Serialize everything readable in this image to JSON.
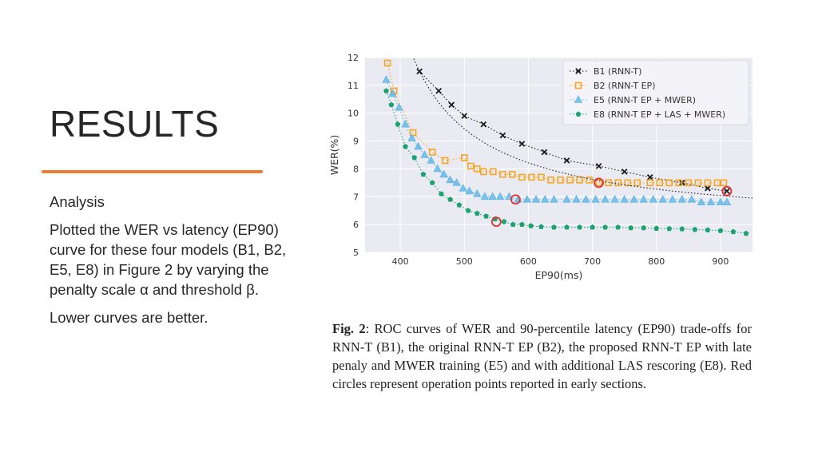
{
  "slide": {
    "title": "RESULTS",
    "accent_color": "#ed7d31",
    "analysis_label": "Analysis",
    "paragraph": "Plotted the WER vs latency (EP90) curve for these four models (B1, B2, E5, E8) in Figure 2 by varying the penalty scale α and threshold β.",
    "note": "Lower curves are better."
  },
  "caption": {
    "label": "Fig. 2",
    "text": ": ROC curves of WER and 90-percentile latency (EP90) trade-offs for RNN-T (B1), the original RNN-T EP (B2), the proposed RNN-T EP with late penaly and MWER training (E5) and with additional LAS rescoring (E8). Red circles represent operation points reported in early sections."
  },
  "chart_data": {
    "type": "line",
    "xlabel": "EP90(ms)",
    "ylabel": "WER(%)",
    "xlim": [
      345,
      950
    ],
    "ylim": [
      5,
      12
    ],
    "xticks": [
      400,
      500,
      600,
      700,
      800,
      900
    ],
    "yticks": [
      5,
      6,
      7,
      8,
      9,
      10,
      11,
      12
    ],
    "grid": true,
    "legend_position": "top-right",
    "series": [
      {
        "name": "B1 (RNN-T)",
        "color": "#1a1a1a",
        "marker": "x",
        "x": [
          430,
          460,
          480,
          500,
          530,
          560,
          590,
          625,
          660,
          710,
          750,
          790,
          840,
          880,
          910
        ],
        "y": [
          11.5,
          10.8,
          10.3,
          9.9,
          9.6,
          9.2,
          8.9,
          8.6,
          8.3,
          8.1,
          7.9,
          7.7,
          7.5,
          7.3,
          7.2
        ]
      },
      {
        "name": "B2 (RNN-T EP)",
        "color": "#f5a623",
        "marker": "square",
        "x": [
          380,
          390,
          420,
          450,
          470,
          500,
          510,
          520,
          530,
          545,
          560,
          575,
          590,
          605,
          620,
          635,
          650,
          665,
          680,
          695,
          710,
          725,
          740,
          755,
          770,
          790,
          805,
          820,
          835,
          850,
          865,
          880,
          895,
          905
        ],
        "y": [
          11.8,
          10.8,
          9.3,
          8.6,
          8.3,
          8.4,
          8.1,
          8.0,
          7.9,
          7.9,
          7.8,
          7.8,
          7.7,
          7.7,
          7.7,
          7.6,
          7.6,
          7.6,
          7.6,
          7.6,
          7.5,
          7.5,
          7.5,
          7.5,
          7.5,
          7.5,
          7.5,
          7.5,
          7.5,
          7.5,
          7.5,
          7.5,
          7.5,
          7.5
        ]
      },
      {
        "name": "E5 (RNN-T EP + MWER)",
        "color": "#5ab4e6",
        "marker": "triangle",
        "x": [
          378,
          388,
          398,
          408,
          418,
          428,
          438,
          448,
          458,
          468,
          478,
          488,
          498,
          508,
          520,
          532,
          544,
          556,
          570,
          584,
          598,
          612,
          626,
          640,
          660,
          675,
          690,
          705,
          720,
          735,
          750,
          765,
          780,
          795,
          810,
          825,
          840,
          855,
          870,
          885,
          900,
          910
        ],
        "y": [
          11.2,
          10.7,
          10.2,
          9.6,
          9.1,
          8.8,
          8.5,
          8.3,
          8.0,
          7.8,
          7.6,
          7.5,
          7.3,
          7.2,
          7.1,
          7.0,
          7.0,
          7.0,
          7.0,
          6.9,
          6.9,
          6.9,
          6.9,
          6.9,
          6.9,
          6.9,
          6.9,
          6.9,
          6.9,
          6.9,
          6.9,
          6.9,
          6.9,
          6.9,
          6.9,
          6.9,
          6.9,
          6.9,
          6.8,
          6.8,
          6.8,
          6.8
        ]
      },
      {
        "name": "E8 (RNN-T EP + LAS + MWER)",
        "color": "#1aa36f",
        "marker": "pentagon",
        "x": [
          378,
          386,
          396,
          408,
          422,
          436,
          450,
          464,
          478,
          492,
          506,
          520,
          534,
          548,
          562,
          576,
          590,
          604,
          620,
          640,
          660,
          680,
          700,
          720,
          740,
          760,
          780,
          800,
          820,
          840,
          860,
          880,
          900,
          920,
          940
        ],
        "y": [
          10.8,
          10.3,
          9.6,
          8.8,
          8.4,
          7.8,
          7.5,
          7.1,
          6.9,
          6.7,
          6.5,
          6.4,
          6.3,
          6.2,
          6.1,
          6.0,
          6.0,
          5.95,
          5.92,
          5.9,
          5.9,
          5.9,
          5.9,
          5.9,
          5.9,
          5.88,
          5.88,
          5.86,
          5.85,
          5.84,
          5.82,
          5.8,
          5.78,
          5.74,
          5.68
        ]
      }
    ],
    "highlight_points": [
      {
        "x": 710,
        "y": 7.5,
        "color": "#e03030"
      },
      {
        "x": 910,
        "y": 7.2,
        "color": "#e03030"
      },
      {
        "x": 580,
        "y": 6.9,
        "color": "#e03030"
      },
      {
        "x": 550,
        "y": 6.1,
        "color": "#e03030"
      }
    ]
  }
}
